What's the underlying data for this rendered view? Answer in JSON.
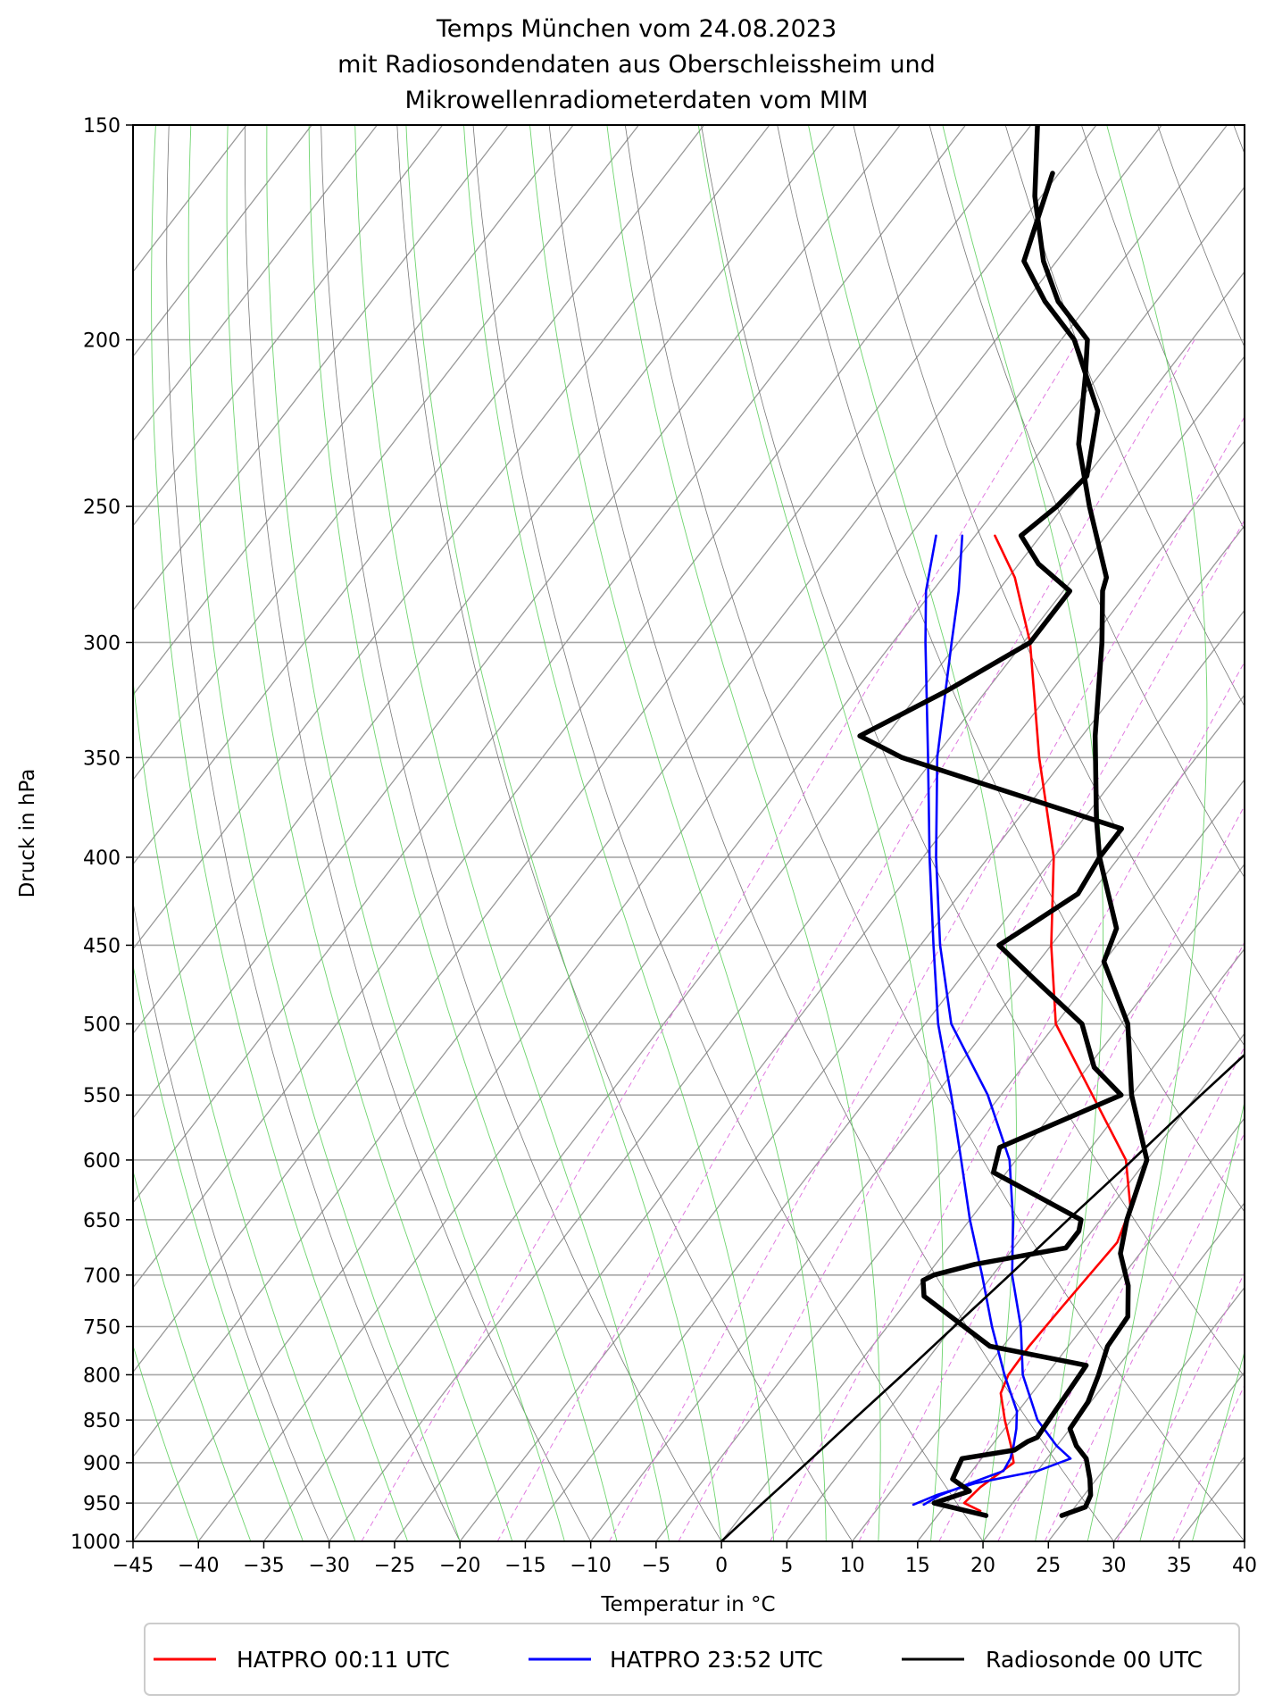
{
  "chart_data": {
    "type": "line",
    "subtype": "skew-t log-p diagram",
    "title": [
      "Temps München vom 24.08.2023",
      "mit Radiosondendaten aus Oberschleissheim und",
      "Mikrowellenradiometerdaten vom MIM"
    ],
    "xlabel": "Temperatur in °C",
    "ylabel": "Druck in hPa",
    "xlim": [
      -45,
      40
    ],
    "ylim": [
      1000,
      150
    ],
    "y_scale": "log",
    "x_ticks": [
      -45,
      -40,
      -35,
      -30,
      -25,
      -20,
      -15,
      -10,
      -5,
      0,
      5,
      10,
      15,
      20,
      25,
      30,
      35,
      40
    ],
    "x_tick_labels": [
      "−45",
      "−40",
      "−35",
      "−30",
      "−25",
      "−20",
      "−15",
      "−10",
      "−5",
      "0",
      "5",
      "10",
      "15",
      "20",
      "25",
      "30",
      "35",
      "40"
    ],
    "y_ticks": [
      1000,
      950,
      900,
      850,
      800,
      750,
      700,
      650,
      600,
      550,
      500,
      450,
      400,
      350,
      300,
      250,
      200,
      150
    ],
    "grid": true,
    "legend_position": "bottom",
    "legend": [
      {
        "name": "HATPRO 00:11 UTC",
        "color": "#ff0000"
      },
      {
        "name": "HATPRO 23:52 UTC",
        "color": "#0000ff"
      },
      {
        "name": "Radiosonde 00 UTC",
        "color": "#000000"
      }
    ],
    "series": [
      {
        "name": "HATPRO 00:11 UTC",
        "color": "#ff0000",
        "points": [
          [
            960,
            18
          ],
          [
            950,
            16.3
          ],
          [
            930,
            16.6
          ],
          [
            900,
            17.7
          ],
          [
            880,
            16.5
          ],
          [
            850,
            14.5
          ],
          [
            820,
            12.6
          ],
          [
            800,
            12.1
          ],
          [
            770,
            12.0
          ],
          [
            730,
            12.2
          ],
          [
            700,
            12.4
          ],
          [
            670,
            12.6
          ],
          [
            640,
            11.6
          ],
          [
            600,
            8.4
          ],
          [
            550,
            2.0
          ],
          [
            500,
            -5.0
          ],
          [
            450,
            -10.0
          ],
          [
            400,
            -15.0
          ],
          [
            350,
            -22.0
          ],
          [
            300,
            -29.5
          ],
          [
            275,
            -34.5
          ],
          [
            260,
            -38.5
          ]
        ]
      },
      {
        "name": "HATPRO 23:52 UTC",
        "color": "#0000ff",
        "points": [
          [
            952,
            12.5
          ],
          [
            940,
            13.7
          ],
          [
            925,
            16.0
          ],
          [
            910,
            20.0
          ],
          [
            895,
            21.8
          ],
          [
            880,
            20.0
          ],
          [
            850,
            17.0
          ],
          [
            800,
            13.2
          ],
          [
            750,
            10.2
          ],
          [
            700,
            6.5
          ],
          [
            650,
            3.3
          ],
          [
            600,
            -0.5
          ],
          [
            550,
            -6.0
          ],
          [
            500,
            -13.0
          ],
          [
            450,
            -18.5
          ],
          [
            400,
            -24.0
          ],
          [
            350,
            -29.8
          ],
          [
            300,
            -35.5
          ],
          [
            280,
            -38.0
          ],
          [
            260,
            -41.0
          ]
        ]
      },
      {
        "name": "HATPRO 23:52 UTC",
        "color": "#0000ff",
        "points": [
          [
            952,
            13.3
          ],
          [
            940,
            14.0
          ],
          [
            925,
            15.6
          ],
          [
            910,
            17.4
          ],
          [
            895,
            17.2
          ],
          [
            880,
            16.7
          ],
          [
            860,
            15.9
          ],
          [
            840,
            14.9
          ],
          [
            800,
            11.8
          ],
          [
            750,
            8.0
          ],
          [
            700,
            4.2
          ],
          [
            650,
            0.0
          ],
          [
            600,
            -4.2
          ],
          [
            550,
            -8.8
          ],
          [
            500,
            -14.0
          ],
          [
            450,
            -19.0
          ],
          [
            400,
            -24.5
          ],
          [
            350,
            -30.5
          ],
          [
            300,
            -37.5
          ],
          [
            280,
            -40.5
          ],
          [
            260,
            -43.0
          ]
        ]
      },
      {
        "name": "Radiosonde 00 UTC",
        "color": "#000000",
        "points": [
          [
            966,
            24.5
          ],
          [
            955,
            25.8
          ],
          [
            940,
            25.5
          ],
          [
            920,
            24.5
          ],
          [
            895,
            23.0
          ],
          [
            880,
            21.5
          ],
          [
            860,
            20.0
          ],
          [
            830,
            19.8
          ],
          [
            800,
            19.0
          ],
          [
            770,
            18.0
          ],
          [
            740,
            17.8
          ],
          [
            710,
            16.0
          ],
          [
            680,
            13.5
          ],
          [
            650,
            12.0
          ],
          [
            600,
            10.0
          ],
          [
            550,
            5.0
          ],
          [
            500,
            0.5
          ],
          [
            460,
            -5.0
          ],
          [
            440,
            -6.0
          ],
          [
            400,
            -11.5
          ],
          [
            380,
            -14.0
          ],
          [
            340,
            -19.0
          ],
          [
            300,
            -24.0
          ],
          [
            280,
            -27.0
          ],
          [
            275,
            -27.5
          ],
          [
            250,
            -33.0
          ],
          [
            230,
            -37.5
          ],
          [
            210,
            -41.0
          ],
          [
            200,
            -43.0
          ],
          [
            190,
            -47.5
          ],
          [
            180,
            -51.0
          ],
          [
            165,
            -55.5
          ],
          [
            150,
            -59.5
          ]
        ]
      },
      {
        "name": "Radiosonde 00 UTC",
        "color": "#000000",
        "points": [
          [
            966,
            18.7
          ],
          [
            950,
            14.0
          ],
          [
            935,
            16.0
          ],
          [
            920,
            14.0
          ],
          [
            895,
            13.5
          ],
          [
            885,
            17.0
          ],
          [
            875,
            17.5
          ],
          [
            870,
            18.0
          ],
          [
            790,
            17.5
          ],
          [
            770,
            9.0
          ],
          [
            720,
            1.0
          ],
          [
            705,
            0.0
          ],
          [
            700,
            0.5
          ],
          [
            690,
            3.0
          ],
          [
            675,
            9.0
          ],
          [
            660,
            9.0
          ],
          [
            650,
            8.5
          ],
          [
            610,
            -1.0
          ],
          [
            590,
            -2.0
          ],
          [
            550,
            4.2
          ],
          [
            530,
            0.5
          ],
          [
            500,
            -3.0
          ],
          [
            470,
            -9.5
          ],
          [
            450,
            -14.0
          ],
          [
            440,
            -13.0
          ],
          [
            420,
            -11.0
          ],
          [
            400,
            -11.5
          ],
          [
            385,
            -11.5
          ],
          [
            350,
            -32.5
          ],
          [
            340,
            -37.0
          ],
          [
            320,
            -33.0
          ],
          [
            300,
            -29.5
          ],
          [
            280,
            -29.5
          ],
          [
            270,
            -33.5
          ],
          [
            260,
            -36.5
          ],
          [
            250,
            -35.5
          ],
          [
            240,
            -35.0
          ],
          [
            220,
            -38.0
          ],
          [
            200,
            -44.0
          ],
          [
            190,
            -48.5
          ],
          [
            180,
            -52.5
          ],
          [
            160,
            -55.5
          ]
        ]
      },
      {
        "name": "",
        "color": "#000000",
        "points": [
          [
            1000,
            0
          ],
          [
            950,
            0.9
          ],
          [
            900,
            1.9
          ],
          [
            850,
            2.9
          ],
          [
            800,
            4.0
          ],
          [
            750,
            5.1
          ],
          [
            700,
            6.3
          ],
          [
            650,
            7.5
          ],
          [
            600,
            8.9
          ],
          [
            550,
            10.3
          ],
          [
            500,
            12.0
          ],
          [
            450,
            13.8
          ],
          [
            400,
            15.8
          ],
          [
            350,
            18.2
          ],
          [
            300,
            20.9
          ],
          [
            250,
            24.2
          ],
          [
            213,
            27.1
          ]
        ]
      }
    ]
  }
}
